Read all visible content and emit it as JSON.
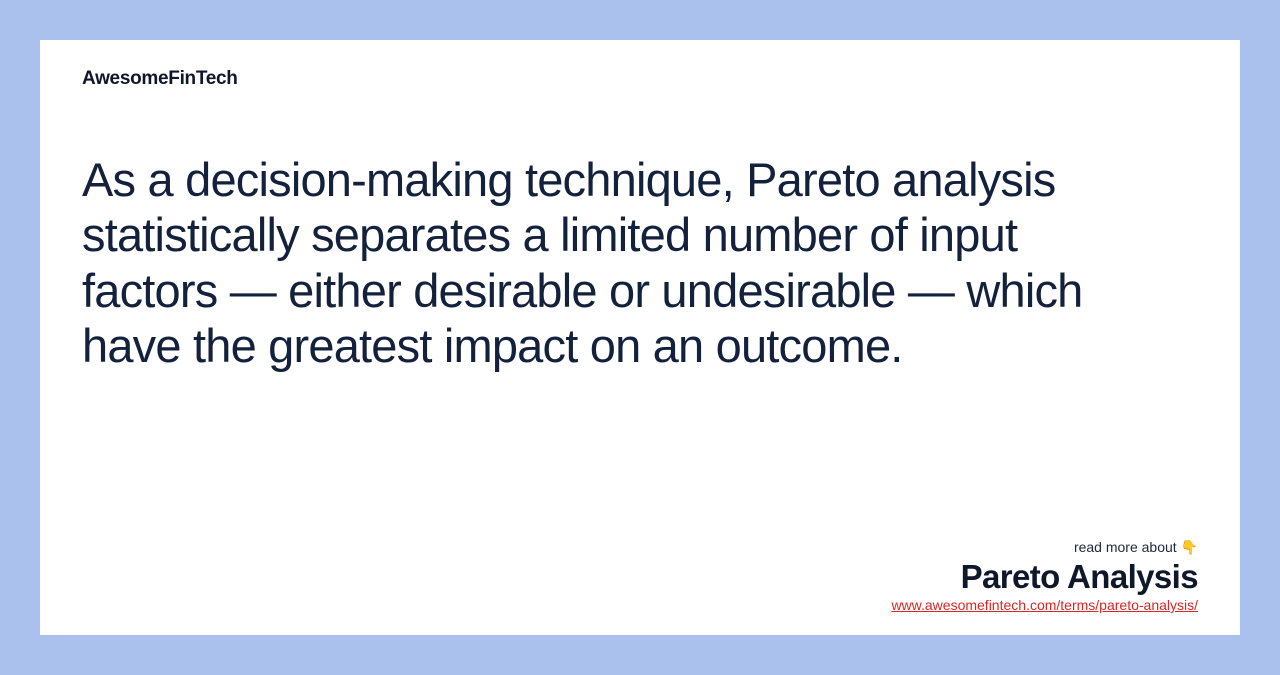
{
  "background_color": "#aac1ed",
  "card_background": "#ffffff",
  "brand": {
    "name": "AwesomeFinTech",
    "color": "#0f172a",
    "font_weight": 800,
    "font_size": 19
  },
  "body": {
    "text": "As a decision-making technique, Pareto analysis statistically separates a limited number of input factors — either desirable or undesirable — which have the greatest impact on an outcome.",
    "color": "#13213c",
    "font_size": 47,
    "line_height": 1.18
  },
  "footer": {
    "read_more_label": "read more about 👇",
    "topic_title": "Pareto Analysis",
    "url": "www.awesomefintech.com/terms/pareto-analysis/",
    "read_more_color": "#1e293b",
    "title_color": "#0f172a",
    "url_color": "#dc2626"
  }
}
